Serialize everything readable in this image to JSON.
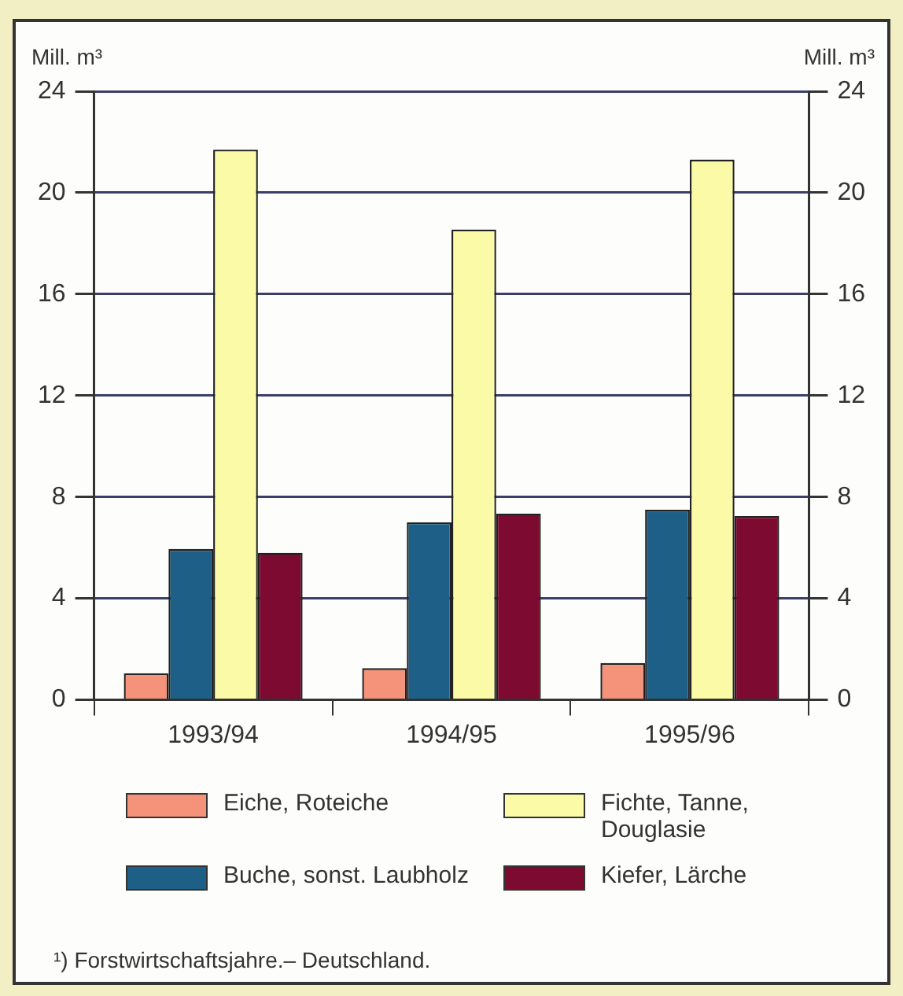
{
  "chart_data": {
    "type": "bar",
    "categories": [
      "1993/94",
      "1994/95",
      "1995/96"
    ],
    "series": [
      {
        "name": "Eiche, Roteiche",
        "color": "#f4937a",
        "values": [
          1.05,
          1.25,
          1.45
        ]
      },
      {
        "name": "Buche, sonst. Laubholz",
        "color": "#1d5f86",
        "values": [
          5.95,
          7.0,
          7.5
        ]
      },
      {
        "name": "Fichte, Tanne, Douglasie",
        "color": "#fbfaa6",
        "values": [
          21.7,
          18.55,
          21.3
        ]
      },
      {
        "name": "Kiefer, Lärche",
        "color": "#7d0a30",
        "values": [
          5.8,
          7.35,
          7.25
        ]
      }
    ],
    "ylabel": "Mill. m³",
    "y2label": "Mill. m³",
    "ylim": [
      0,
      24
    ],
    "yticks": [
      0,
      4,
      8,
      12,
      16,
      20,
      24
    ],
    "y2lim": [
      0,
      24
    ],
    "y2ticks": [
      0,
      4,
      8,
      12,
      16,
      20,
      24
    ],
    "grid": "y",
    "legend": "bottom",
    "annotations": [
      "¹) Forstwirtschaftsjahre.– Deutschland."
    ]
  }
}
